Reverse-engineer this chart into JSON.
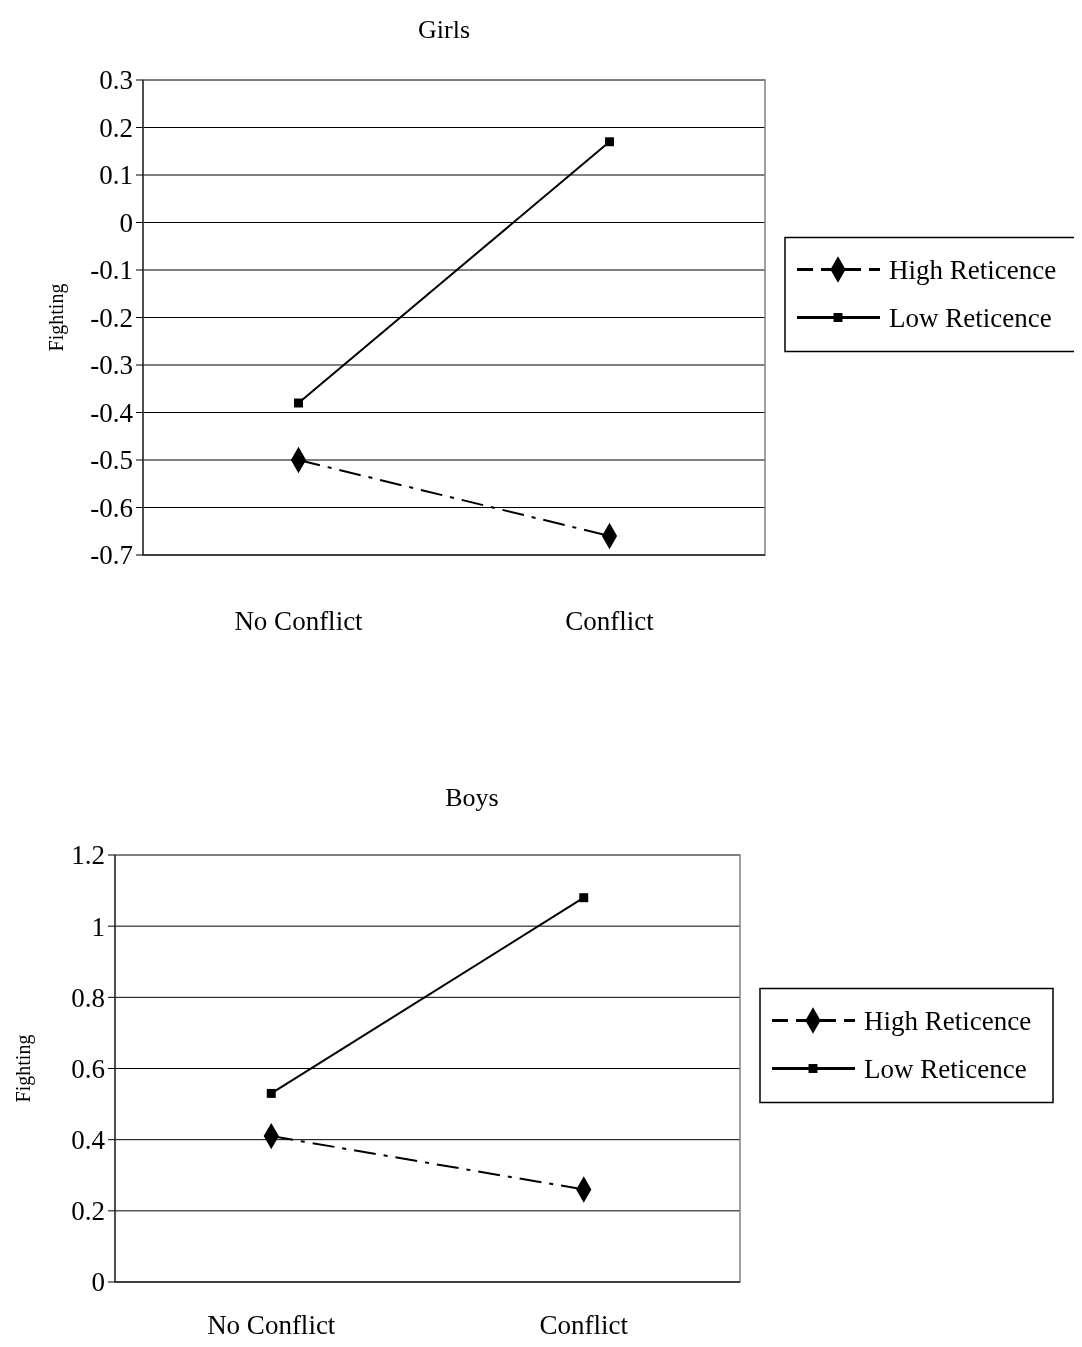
{
  "chart_data": [
    {
      "type": "line",
      "title": "Girls",
      "ylabel": "Fighting",
      "categories": [
        "No Conflict",
        "Conflict"
      ],
      "ylim": [
        -0.7,
        0.3
      ],
      "yticks": [
        -0.7,
        -0.6,
        -0.5,
        -0.4,
        -0.3,
        -0.2,
        -0.1,
        0,
        0.1,
        0.2,
        0.3
      ],
      "grid": "y",
      "legend": "right",
      "series": [
        {
          "name": "High Reticence",
          "color": "#000000",
          "values": [
            -0.5,
            -0.66
          ],
          "marker": "diamond",
          "line_style": "dashed"
        },
        {
          "name": "Low Reticence",
          "color": "#000000",
          "values": [
            -0.38,
            0.17
          ],
          "marker": "square",
          "line_style": "solid"
        }
      ]
    },
    {
      "type": "line",
      "title": "Boys",
      "ylabel": "Fighting",
      "categories": [
        "No Conflict",
        "Conflict"
      ],
      "ylim": [
        0,
        1.2
      ],
      "yticks": [
        0,
        0.2,
        0.4,
        0.6,
        0.8,
        1,
        1.2
      ],
      "grid": "y",
      "legend": "right",
      "series": [
        {
          "name": "High Reticence",
          "color": "#000000",
          "values": [
            0.41,
            0.26
          ],
          "marker": "diamond",
          "line_style": "dashed"
        },
        {
          "name": "Low Reticence",
          "color": "#000000",
          "values": [
            0.53,
            1.08
          ],
          "marker": "square",
          "line_style": "solid"
        }
      ]
    }
  ]
}
